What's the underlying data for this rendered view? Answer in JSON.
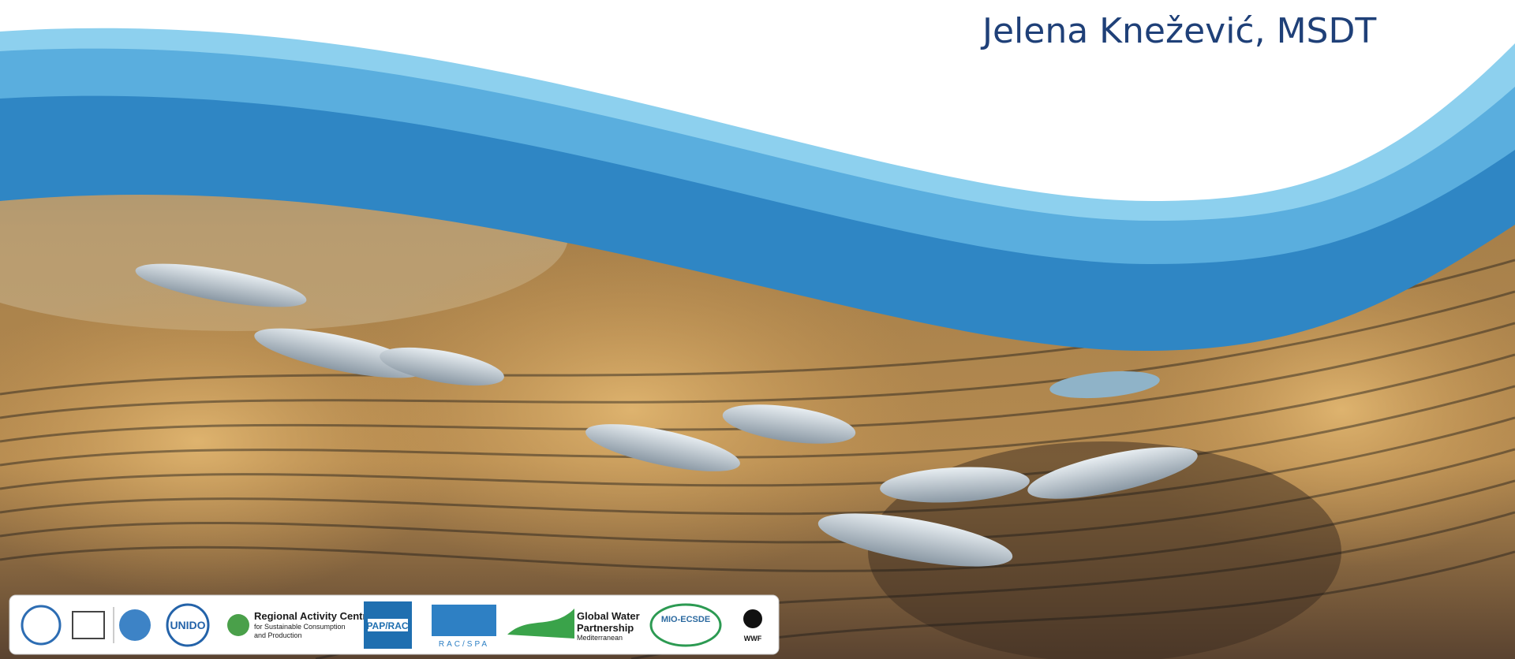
{
  "title": "Jelena Knežević, MSDT",
  "logos": {
    "unido": "UNIDO",
    "rac_scp": {
      "lines": [
        "Regional Activity Centre",
        "for Sustainable Consumption",
        "and Production"
      ]
    },
    "pap_rac": "PAP/RAC",
    "rac_spa": "RAC/SPA",
    "gwp": {
      "lines": [
        "Global Water",
        "Partnership",
        "Mediterranean"
      ]
    },
    "mio_ecsde": "MIO-ECSDE",
    "wwf": "WWF"
  }
}
